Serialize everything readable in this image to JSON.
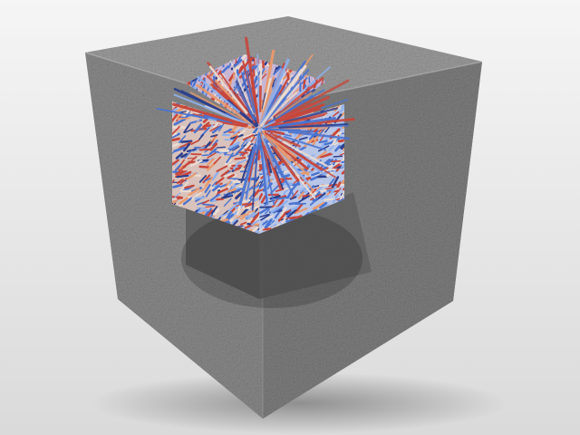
{
  "scene": {
    "subject": "textured-cube-with-vector-field-cutout",
    "colors": {
      "background_top": "#f4f4f4",
      "background_bottom": "#dcdcdc",
      "cube_front": "#8a8a8a",
      "cube_side": "#7b7b7b",
      "cube_top": "#9a9a9a",
      "cavity_shadow": "#5e5e5e",
      "arrow_red": "#c8463a",
      "arrow_orange": "#e89a6e",
      "arrow_light": "#eadcd2",
      "arrow_blue": "#4a74d0",
      "arrow_lightblue": "#8fb0ec",
      "arrow_navy": "#2c3f8c"
    }
  }
}
